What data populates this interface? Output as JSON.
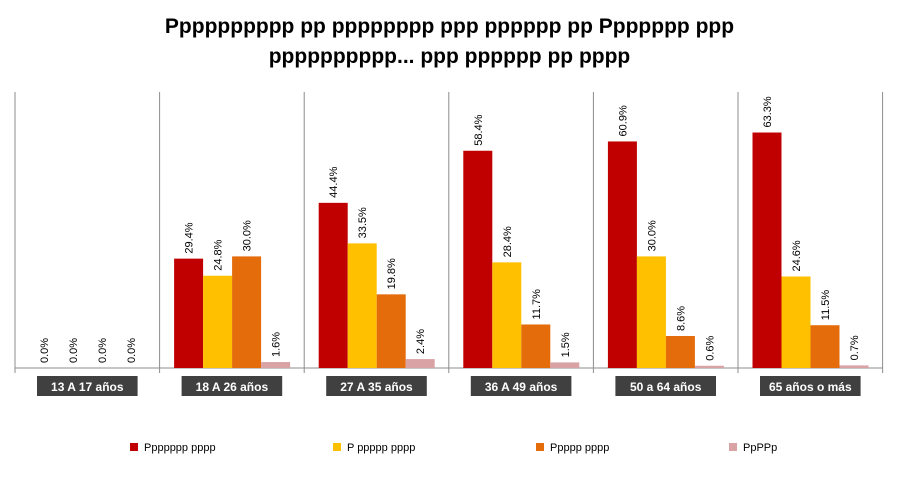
{
  "chart_data": {
    "type": "bar",
    "title_line1": "Pppppppppp pp pppppppp ppp pppppp pp Ppppppp ppp",
    "title_line2": "pppppppppp... ppp pppppp pp pppp",
    "categories": [
      "13 A 17 años",
      "18 A 26 años",
      "27 A 35 años",
      "36 A 49 años",
      "50 a 64 años",
      "65 años o más"
    ],
    "series": [
      {
        "name": "Ppppppp pppp",
        "color": "#C00000",
        "values": [
          0.0,
          29.4,
          44.4,
          58.4,
          60.9,
          63.3
        ]
      },
      {
        "name": "P ppppp pppp",
        "color": "#FFC000",
        "values": [
          0.0,
          24.8,
          33.5,
          28.4,
          30.0,
          24.6
        ]
      },
      {
        "name": "Ppppp pppp",
        "color": "#E46C0A",
        "values": [
          0.0,
          30.0,
          19.8,
          11.7,
          8.6,
          11.5
        ]
      },
      {
        "name": "PpPPp",
        "color": "#D9A3A6",
        "values": [
          0.0,
          1.6,
          2.4,
          1.5,
          0.6,
          0.7
        ]
      }
    ],
    "value_suffix": "%",
    "ylim": [
      0,
      70
    ],
    "grid": false,
    "legend_position": "bottom",
    "category_label_background": "#404040"
  }
}
